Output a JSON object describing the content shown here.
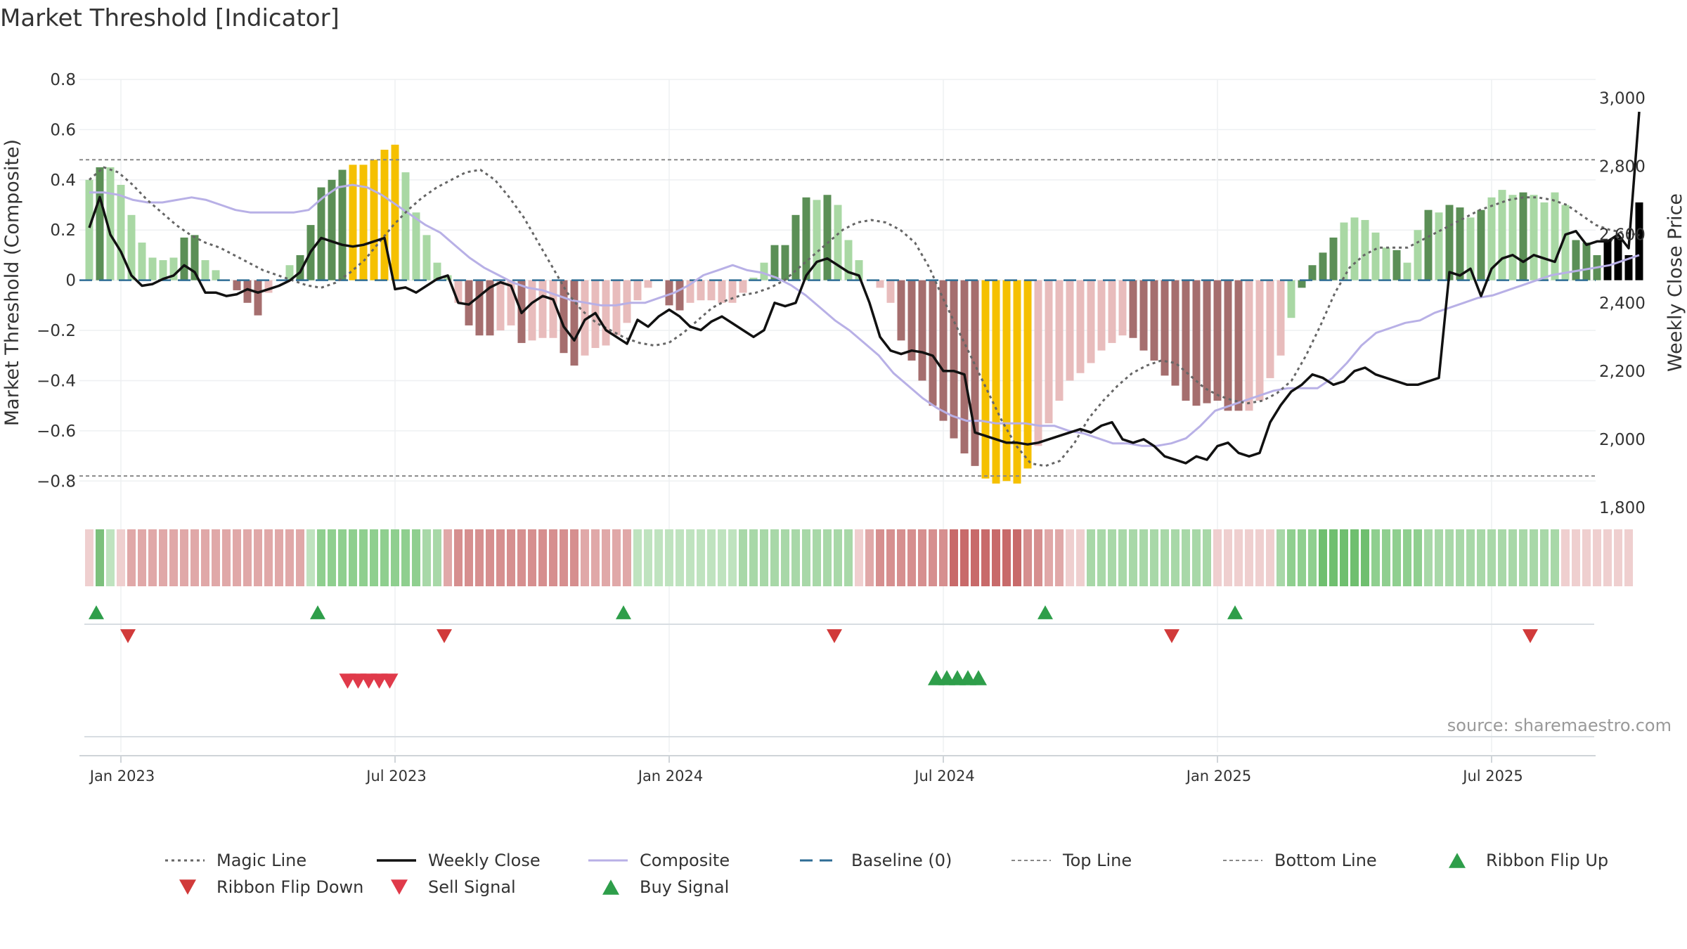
{
  "chart_data": {
    "type": "bar+line",
    "title": "Market Threshold [Indicator]",
    "ylabel_left": "Market Threshold (Composite)",
    "ylabel_right": "Weekly Close Price",
    "source": "source: sharemaestro.com",
    "ylim_left": [
      -0.9,
      0.8
    ],
    "yticks_left": [
      0.8,
      0.6,
      0.4,
      0.2,
      0,
      -0.2,
      -0.4,
      -0.6,
      -0.8
    ],
    "ytick_labels_left": [
      "0.8",
      "0.6",
      "0.4",
      "0.2",
      "0",
      "−0.2",
      "−0.4",
      "−0.6",
      "−0.8"
    ],
    "ylim_right": [
      1800,
      3100
    ],
    "yticks_right": [
      1800,
      2000,
      2200,
      2400,
      2600,
      2800,
      3000
    ],
    "ytick_labels_right": [
      "1,800",
      "2,000",
      "2,200",
      "2,400",
      "2,600",
      "2,800",
      "3,000"
    ],
    "xtick_labels": [
      "Jan 2023",
      "Jul 2023",
      "Jan 2024",
      "Jul 2024",
      "Jan 2025",
      "Jul 2025"
    ],
    "xtick_weeks": [
      3,
      29,
      55,
      81,
      107,
      133
    ],
    "top_line": 0.48,
    "bottom_line": -0.78,
    "bars": [
      0.4,
      0.45,
      0.45,
      0.38,
      0.26,
      0.15,
      0.09,
      0.08,
      0.09,
      0.17,
      0.18,
      0.08,
      0.04,
      0.0,
      -0.04,
      -0.09,
      -0.14,
      -0.05,
      0.0,
      0.06,
      0.1,
      0.22,
      0.37,
      0.4,
      0.44,
      0.46,
      0.46,
      0.48,
      0.52,
      0.54,
      0.43,
      0.27,
      0.18,
      0.07,
      0.02,
      -0.09,
      -0.18,
      -0.22,
      -0.22,
      -0.2,
      -0.18,
      -0.25,
      -0.24,
      -0.23,
      -0.23,
      -0.29,
      -0.34,
      -0.3,
      -0.27,
      -0.26,
      -0.22,
      -0.17,
      -0.08,
      -0.03,
      0.0,
      -0.1,
      -0.12,
      -0.09,
      -0.08,
      -0.08,
      -0.09,
      -0.09,
      -0.05,
      0.01,
      0.07,
      0.14,
      0.14,
      0.26,
      0.33,
      0.32,
      0.34,
      0.3,
      0.16,
      0.08,
      0.0,
      -0.03,
      -0.09,
      -0.24,
      -0.32,
      -0.4,
      -0.5,
      -0.56,
      -0.63,
      -0.69,
      -0.74,
      -0.79,
      -0.81,
      -0.8,
      -0.81,
      -0.75,
      -0.66,
      -0.57,
      -0.48,
      -0.4,
      -0.37,
      -0.33,
      -0.28,
      -0.25,
      -0.22,
      -0.23,
      -0.28,
      -0.32,
      -0.38,
      -0.42,
      -0.48,
      -0.5,
      -0.49,
      -0.48,
      -0.52,
      -0.52,
      -0.52,
      -0.48,
      -0.39,
      -0.3,
      -0.15,
      -0.03,
      0.06,
      0.11,
      0.17,
      0.23,
      0.25,
      0.24,
      0.19,
      0.13,
      0.12,
      0.07,
      0.2,
      0.28,
      0.27,
      0.3,
      0.29,
      0.25,
      0.28,
      0.33,
      0.36,
      0.34,
      0.35,
      0.34,
      0.31,
      0.35,
      0.3,
      0.16,
      0.15,
      0.1,
      0.16,
      0.17,
      0.1,
      0.31
    ],
    "bar_colors": [
      "#a9d8a4",
      "#5b8f56",
      "#a9d8a4",
      "#a9d8a4",
      "#a9d8a4",
      "#a9d8a4",
      "#a9d8a4",
      "#a9d8a4",
      "#a9d8a4",
      "#5b8f56",
      "#5b8f56",
      "#a9d8a4",
      "#a9d8a4",
      "#e8bcbc",
      "#a56e6e",
      "#a56e6e",
      "#a56e6e",
      "#e8bcbc",
      "#a9d8a4",
      "#a9d8a4",
      "#5b8f56",
      "#5b8f56",
      "#5b8f56",
      "#5b8f56",
      "#5b8f56",
      "#f5c000",
      "#f5c000",
      "#f5c000",
      "#f5c000",
      "#f5c000",
      "#a9d8a4",
      "#a9d8a4",
      "#a9d8a4",
      "#a9d8a4",
      "#a9d8a4",
      "#e8bcbc",
      "#a56e6e",
      "#a56e6e",
      "#a56e6e",
      "#e8bcbc",
      "#e8bcbc",
      "#a56e6e",
      "#e8bcbc",
      "#e8bcbc",
      "#e8bcbc",
      "#a56e6e",
      "#a56e6e",
      "#e8bcbc",
      "#e8bcbc",
      "#e8bcbc",
      "#e8bcbc",
      "#e8bcbc",
      "#e8bcbc",
      "#e8bcbc",
      "#e8bcbc",
      "#a56e6e",
      "#a56e6e",
      "#e8bcbc",
      "#e8bcbc",
      "#e8bcbc",
      "#e8bcbc",
      "#e8bcbc",
      "#e8bcbc",
      "#a9d8a4",
      "#a9d8a4",
      "#5b8f56",
      "#5b8f56",
      "#5b8f56",
      "#5b8f56",
      "#a9d8a4",
      "#5b8f56",
      "#a9d8a4",
      "#a9d8a4",
      "#a9d8a4",
      "#e8bcbc",
      "#e8bcbc",
      "#e8bcbc",
      "#a56e6e",
      "#a56e6e",
      "#a56e6e",
      "#a56e6e",
      "#a56e6e",
      "#a56e6e",
      "#a56e6e",
      "#a56e6e",
      "#f5c000",
      "#f5c000",
      "#f5c000",
      "#f5c000",
      "#f5c000",
      "#e8bcbc",
      "#e8bcbc",
      "#e8bcbc",
      "#e8bcbc",
      "#e8bcbc",
      "#e8bcbc",
      "#e8bcbc",
      "#e8bcbc",
      "#e8bcbc",
      "#a56e6e",
      "#a56e6e",
      "#a56e6e",
      "#a56e6e",
      "#a56e6e",
      "#a56e6e",
      "#a56e6e",
      "#a56e6e",
      "#a56e6e",
      "#a56e6e",
      "#a56e6e",
      "#e8bcbc",
      "#e8bcbc",
      "#e8bcbc",
      "#e8bcbc",
      "#a9d8a4",
      "#5b8f56",
      "#5b8f56",
      "#5b8f56",
      "#5b8f56",
      "#a9d8a4",
      "#a9d8a4",
      "#a9d8a4",
      "#a9d8a4",
      "#a9d8a4",
      "#5b8f56",
      "#a9d8a4",
      "#a9d8a4",
      "#5b8f56",
      "#a9d8a4",
      "#5b8f56",
      "#5b8f56",
      "#a9d8a4",
      "#5b8f56",
      "#a9d8a4",
      "#a9d8a4",
      "#a9d8a4",
      "#5b8f56",
      "#a9d8a4",
      "#a9d8a4",
      "#a9d8a4",
      "#a9d8a4",
      "#5b8f56",
      "#5b8f56",
      "#5b8f56"
    ],
    "weekly_close": [
      2620,
      2710,
      2600,
      2550,
      2480,
      2450,
      2455,
      2470,
      2480,
      2510,
      2490,
      2430,
      2430,
      2420,
      2425,
      2440,
      2430,
      2440,
      2450,
      2465,
      2490,
      2550,
      2590,
      2580,
      2570,
      2565,
      2570,
      2580,
      2590,
      2440,
      2445,
      2430,
      2450,
      2470,
      2480,
      2400,
      2395,
      2420,
      2445,
      2460,
      2450,
      2370,
      2400,
      2420,
      2410,
      2330,
      2290,
      2350,
      2370,
      2320,
      2300,
      2280,
      2350,
      2330,
      2360,
      2380,
      2360,
      2330,
      2320,
      2345,
      2360,
      2340,
      2320,
      2300,
      2320,
      2400,
      2390,
      2400,
      2480,
      2520,
      2530,
      2510,
      2490,
      2480,
      2400,
      2300,
      2260,
      2250,
      2260,
      2255,
      2245,
      2200,
      2200,
      2190,
      2020,
      2010,
      2000,
      1990,
      1990,
      1985,
      1990,
      2000,
      2010,
      2020,
      2030,
      2020,
      2040,
      2050,
      2000,
      1990,
      2000,
      1980,
      1950,
      1940,
      1930,
      1950,
      1940,
      1980,
      1990,
      1960,
      1950,
      1960,
      2050,
      2100,
      2140,
      2160,
      2190,
      2180,
      2160,
      2170,
      2200,
      2210,
      2190,
      2180,
      2170,
      2160,
      2160,
      2170,
      2180,
      2490,
      2480,
      2500,
      2420,
      2500,
      2530,
      2540,
      2520,
      2540,
      2530,
      2520,
      2600,
      2610,
      2570,
      2580,
      2580,
      2600,
      2560,
      2960
    ],
    "composite": [
      0.35,
      0.35,
      0.34,
      0.32,
      0.31,
      0.31,
      0.32,
      0.33,
      0.32,
      0.3,
      0.28,
      0.27,
      0.27,
      0.27,
      0.27,
      0.28,
      0.33,
      0.37,
      0.38,
      0.37,
      0.34,
      0.3,
      0.26,
      0.22,
      0.19,
      0.14,
      0.09,
      0.05,
      0.02,
      -0.01,
      -0.03,
      -0.04,
      -0.06,
      -0.08,
      -0.09,
      -0.1,
      -0.1,
      -0.09,
      -0.09,
      -0.07,
      -0.05,
      -0.02,
      0.02,
      0.04,
      0.06,
      0.04,
      0.03,
      0.01,
      -0.02,
      -0.06,
      -0.11,
      -0.16,
      -0.2,
      -0.25,
      -0.3,
      -0.37,
      -0.42,
      -0.47,
      -0.51,
      -0.54,
      -0.56,
      -0.56,
      -0.57,
      -0.57,
      -0.57,
      -0.58,
      -0.58,
      -0.6,
      -0.61,
      -0.63,
      -0.65,
      -0.65,
      -0.66,
      -0.66,
      -0.65,
      -0.63,
      -0.58,
      -0.52,
      -0.5,
      -0.48,
      -0.46,
      -0.44,
      -0.43,
      -0.43,
      -0.43,
      -0.39,
      -0.33,
      -0.26,
      -0.21,
      -0.19,
      -0.17,
      -0.16,
      -0.13,
      -0.11,
      -0.09,
      -0.07,
      -0.06,
      -0.04,
      -0.02,
      0.0,
      0.02,
      0.03,
      0.04,
      0.05,
      0.06,
      0.08,
      0.1
    ],
    "magic_line": [
      0.4,
      0.45,
      0.43,
      0.38,
      0.32,
      0.27,
      0.22,
      0.18,
      0.15,
      0.13,
      0.1,
      0.07,
      0.04,
      0.02,
      0.0,
      -0.02,
      -0.03,
      -0.01,
      0.03,
      0.08,
      0.15,
      0.22,
      0.28,
      0.33,
      0.37,
      0.4,
      0.43,
      0.44,
      0.4,
      0.33,
      0.25,
      0.15,
      0.05,
      -0.05,
      -0.12,
      -0.17,
      -0.2,
      -0.23,
      -0.25,
      -0.26,
      -0.25,
      -0.21,
      -0.16,
      -0.11,
      -0.08,
      -0.06,
      -0.05,
      -0.03,
      0.0,
      0.05,
      0.1,
      0.15,
      0.2,
      0.23,
      0.24,
      0.23,
      0.2,
      0.15,
      0.05,
      -0.08,
      -0.2,
      -0.32,
      -0.44,
      -0.56,
      -0.66,
      -0.73,
      -0.74,
      -0.72,
      -0.65,
      -0.55,
      -0.48,
      -0.42,
      -0.37,
      -0.34,
      -0.32,
      -0.33,
      -0.38,
      -0.43,
      -0.46,
      -0.48,
      -0.49,
      -0.48,
      -0.45,
      -0.4,
      -0.3,
      -0.18,
      -0.05,
      0.05,
      0.1,
      0.13,
      0.13,
      0.13,
      0.16,
      0.19,
      0.22,
      0.25,
      0.28,
      0.3,
      0.32,
      0.33,
      0.33,
      0.32,
      0.3,
      0.26,
      0.22,
      0.2,
      0.19,
      0.18
    ],
    "ribbon_colors": [
      "#efcfcf",
      "#7cc07c",
      "#bfe3bf",
      "#efcfcf",
      "#e0a8a8",
      "#e0a8a8",
      "#e0a8a8",
      "#e0a8a8",
      "#e0a8a8",
      "#e0a8a8",
      "#e0a8a8",
      "#e0a8a8",
      "#e0a8a8",
      "#e0a8a8",
      "#e0a8a8",
      "#e0a8a8",
      "#e0a8a8",
      "#e0a8a8",
      "#e0a8a8",
      "#e0a8a8",
      "#e0a8a8",
      "#bfe3bf",
      "#8fcf8f",
      "#8fcf8f",
      "#8fcf8f",
      "#8fcf8f",
      "#8fcf8f",
      "#8fcf8f",
      "#8fcf8f",
      "#8fcf8f",
      "#8fcf8f",
      "#8fcf8f",
      "#a8d8a8",
      "#a8d8a8",
      "#e0a8a8",
      "#d68f8f",
      "#d68f8f",
      "#d68f8f",
      "#d68f8f",
      "#d68f8f",
      "#d68f8f",
      "#d68f8f",
      "#d68f8f",
      "#d68f8f",
      "#d68f8f",
      "#d68f8f",
      "#d68f8f",
      "#e0a8a8",
      "#e0a8a8",
      "#e0a8a8",
      "#e0a8a8",
      "#e0a8a8",
      "#bfe3bf",
      "#bfe3bf",
      "#bfe3bf",
      "#bfe3bf",
      "#bfe3bf",
      "#bfe3bf",
      "#bfe3bf",
      "#bfe3bf",
      "#bfe3bf",
      "#bfe3bf",
      "#a8d8a8",
      "#a8d8a8",
      "#a8d8a8",
      "#a8d8a8",
      "#a8d8a8",
      "#a8d8a8",
      "#a8d8a8",
      "#a8d8a8",
      "#a8d8a8",
      "#a8d8a8",
      "#a8d8a8",
      "#efcfcf",
      "#e0a8a8",
      "#d68f8f",
      "#d68f8f",
      "#d68f8f",
      "#d68f8f",
      "#d68f8f",
      "#d68f8f",
      "#d68f8f",
      "#c86a6a",
      "#c86a6a",
      "#c86a6a",
      "#c86a6a",
      "#c86a6a",
      "#c86a6a",
      "#c86a6a",
      "#d68f8f",
      "#d68f8f",
      "#e0a8a8",
      "#e0a8a8",
      "#efcfcf",
      "#efcfcf",
      "#a8d8a8",
      "#a8d8a8",
      "#a8d8a8",
      "#a8d8a8",
      "#a8d8a8",
      "#a8d8a8",
      "#a8d8a8",
      "#a8d8a8",
      "#a8d8a8",
      "#a8d8a8",
      "#a8d8a8",
      "#a8d8a8",
      "#efcfcf",
      "#efcfcf",
      "#efcfcf",
      "#efcfcf",
      "#efcfcf",
      "#efcfcf",
      "#a8d8a8",
      "#8fcf8f",
      "#8fcf8f",
      "#8fcf8f",
      "#6fbf6f",
      "#6fbf6f",
      "#6fbf6f",
      "#6fbf6f",
      "#6fbf6f",
      "#8fcf8f",
      "#8fcf8f",
      "#8fcf8f",
      "#8fcf8f",
      "#8fcf8f",
      "#a8d8a8",
      "#a8d8a8",
      "#a8d8a8",
      "#a8d8a8",
      "#a8d8a8",
      "#a8d8a8",
      "#a8d8a8",
      "#a8d8a8",
      "#a8d8a8",
      "#a8d8a8",
      "#a8d8a8",
      "#a8d8a8",
      "#a8d8a8",
      "#efcfcf",
      "#efcfcf",
      "#efcfcf",
      "#efcfcf",
      "#efcfcf",
      "#efcfcf",
      "#efcfcf"
    ],
    "ribbon_flip_up_weeks": [
      0,
      21,
      50,
      90,
      108
    ],
    "ribbon_flip_down_weeks": [
      3,
      33,
      70,
      102,
      136
    ],
    "sell_signal_weeks": [
      24.5,
      25.5,
      26.5,
      27.5,
      28.5
    ],
    "buy_signal_weeks": [
      80,
      81,
      82,
      83,
      84
    ],
    "legend": [
      "Magic Line",
      "Weekly Close",
      "Composite",
      "Baseline (0)",
      "Top Line",
      "Bottom Line",
      "Ribbon Flip Up",
      "Ribbon Flip Down",
      "Sell Signal",
      "Buy Signal"
    ]
  },
  "colors": {
    "magic_line": "#666666",
    "weekly_close": "#111111",
    "composite": "#b8b0e6",
    "baseline": "#2f6d95",
    "ref_line": "#888888",
    "flip_up": "#2e9e4a",
    "flip_down": "#d13a3a",
    "sell": "#e03a4a",
    "buy": "#2e9e4a"
  }
}
